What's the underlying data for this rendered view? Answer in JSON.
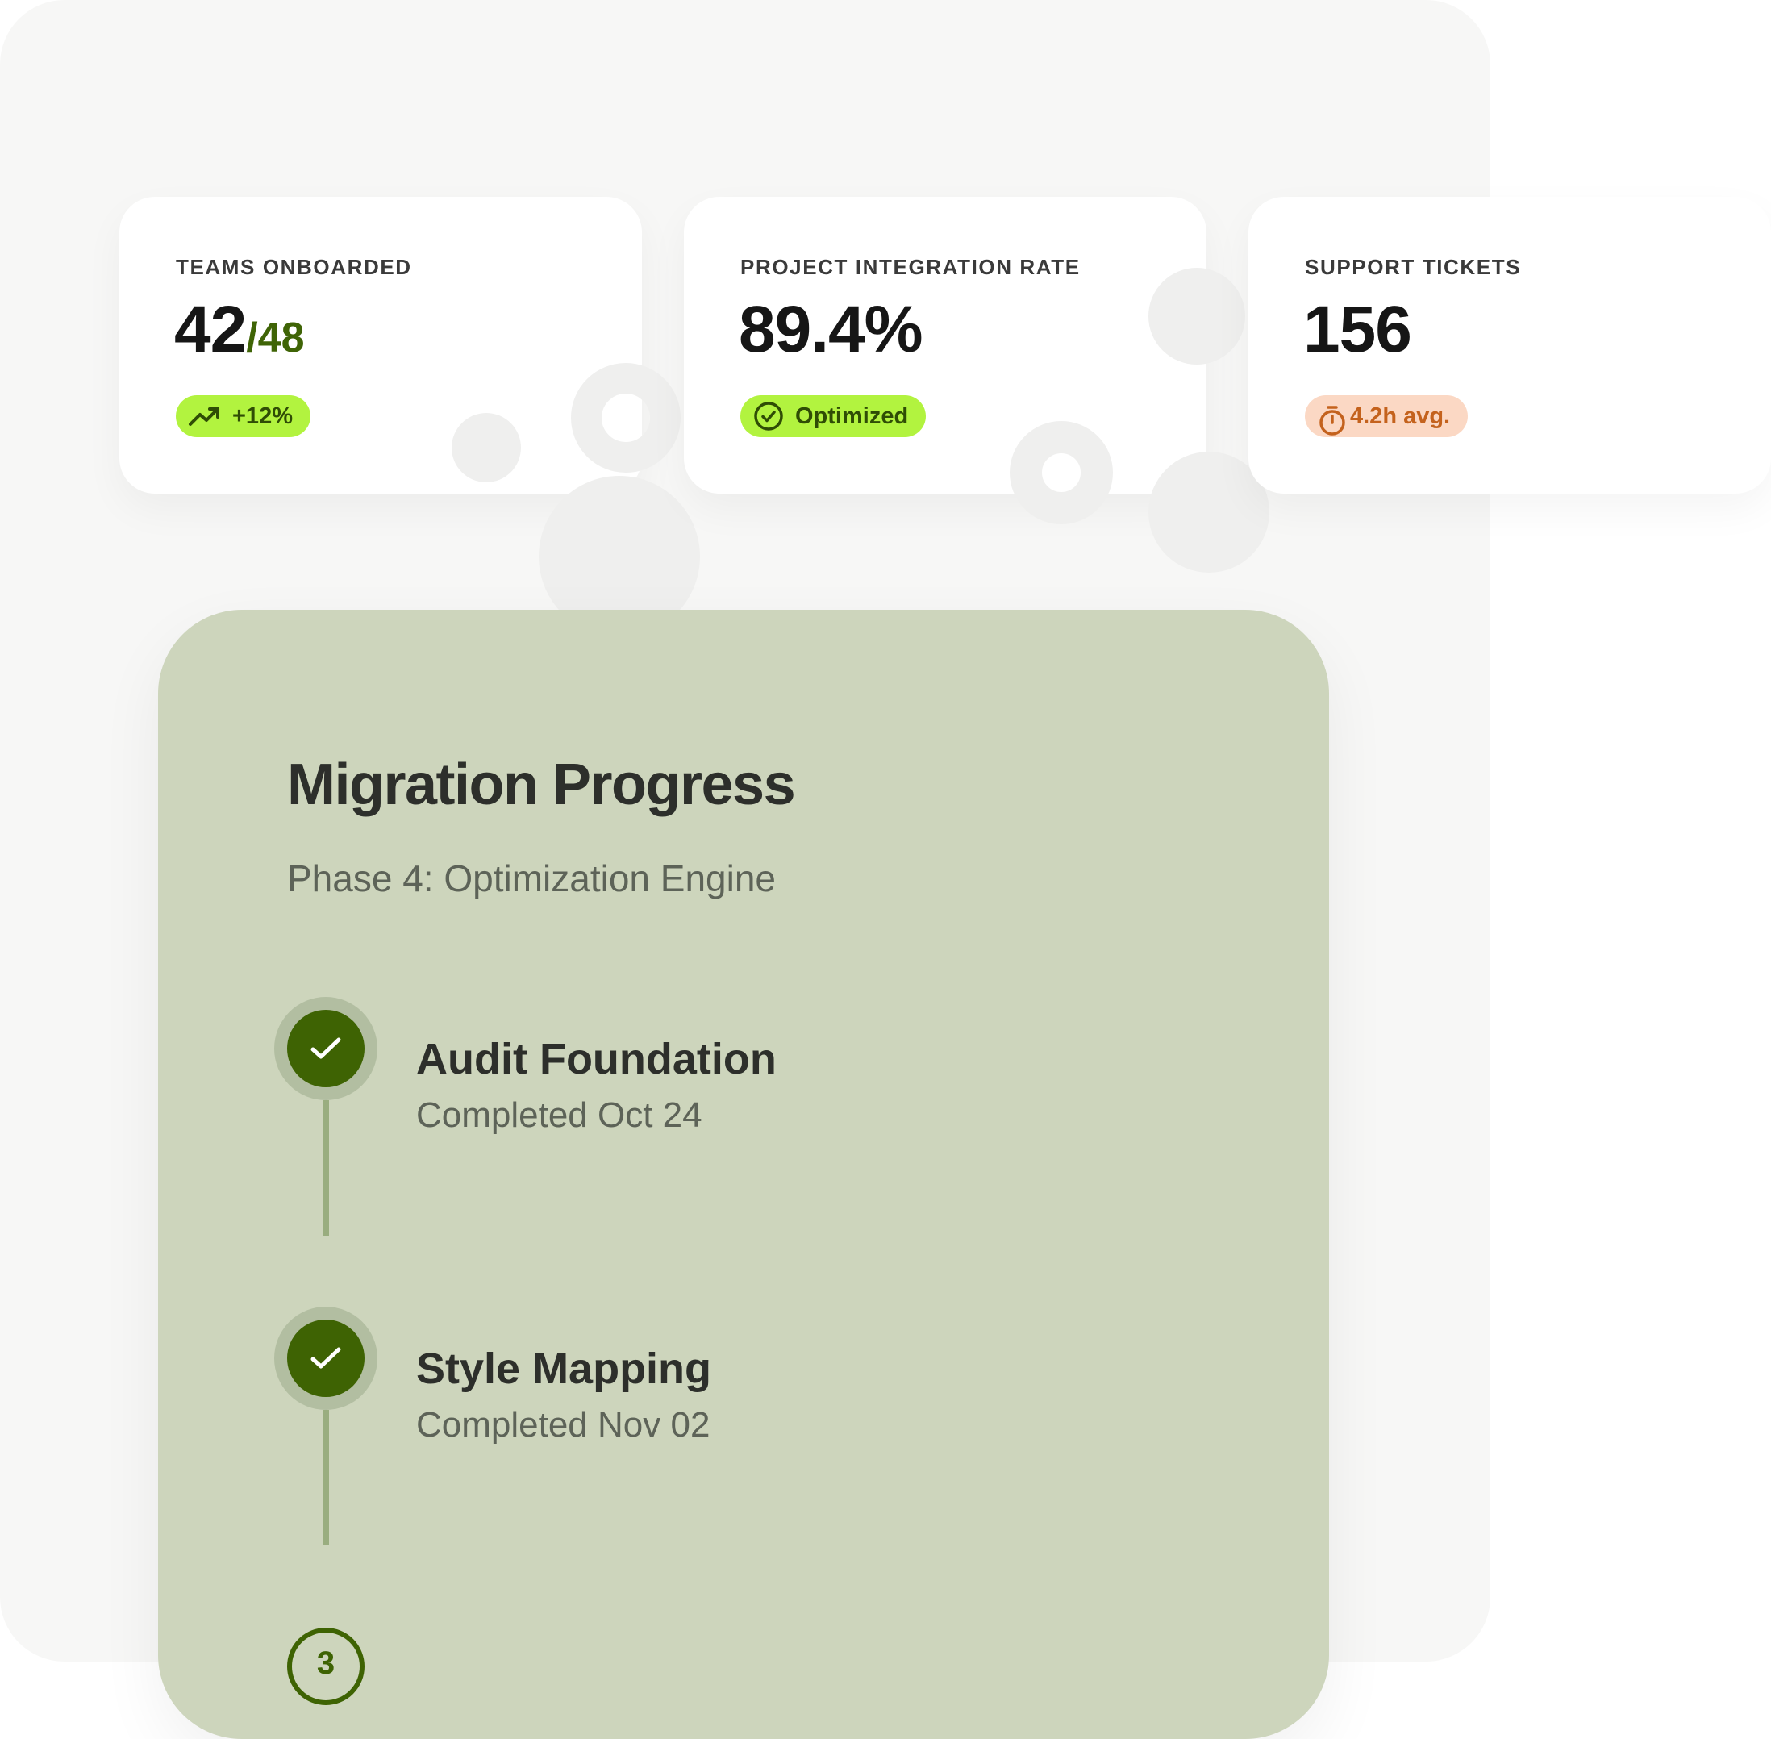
{
  "stats": [
    {
      "label": "TEAMS ONBOARDED",
      "value": "42",
      "value_suffix": "/48",
      "badge": "+12%",
      "badge_icon": "trending-up-icon"
    },
    {
      "label": "PROJECT INTEGRATION RATE",
      "value": "89.4%",
      "badge": "Optimized",
      "badge_icon": "check-circle-icon"
    },
    {
      "label": "SUPPORT TICKETS",
      "value": "156",
      "badge": "4.2h avg.",
      "badge_icon": "stopwatch-icon"
    }
  ],
  "migration": {
    "title": "Migration Progress",
    "subtitle": "Phase 4: Optimization Engine",
    "steps": [
      {
        "title": "Audit Foundation",
        "date": "Completed Oct 24",
        "status": "completed"
      },
      {
        "title": "Style Mapping",
        "date": "Completed Nov 02",
        "status": "completed"
      },
      {
        "number": "3",
        "status": "in-progress"
      }
    ]
  },
  "colors": {
    "accent_green": "#b2f33f",
    "dark_green": "#3e6303",
    "panel_background": "#cdd5bc",
    "warning_badge": "#fbd8c4"
  }
}
